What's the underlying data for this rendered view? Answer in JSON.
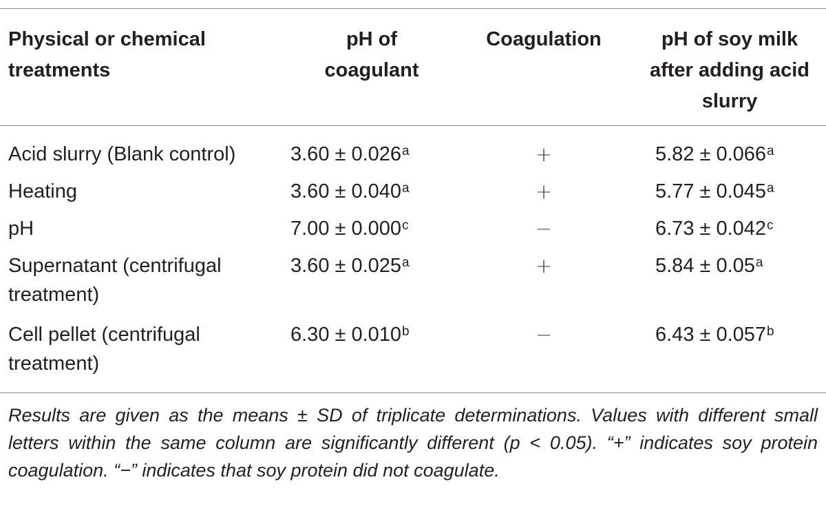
{
  "table": {
    "headers": {
      "treatment": "Physical or chemical treatments",
      "ph_coagulant": "pH of coagulant",
      "coagulation": "Coagulation",
      "ph_soy_milk": "pH of soy milk after adding acid slurry"
    },
    "rows": [
      {
        "treatment": "Acid slurry (Blank control)",
        "ph_coagulant": "3.60 ± 0.026",
        "ph_coagulant_letter": "a",
        "coagulation": "+",
        "ph_soy_milk": "5.82 ± 0.066",
        "ph_soy_milk_letter": "a"
      },
      {
        "treatment": "Heating",
        "ph_coagulant": "3.60 ± 0.040",
        "ph_coagulant_letter": "a",
        "coagulation": "+",
        "ph_soy_milk": "5.77 ± 0.045",
        "ph_soy_milk_letter": "a"
      },
      {
        "treatment": "pH",
        "ph_coagulant": "7.00 ± 0.000",
        "ph_coagulant_letter": "c",
        "coagulation": "−",
        "ph_soy_milk": "6.73 ± 0.042",
        "ph_soy_milk_letter": "c"
      },
      {
        "treatment": "Supernatant (centrifugal treatment)",
        "ph_coagulant": "3.60 ± 0.025",
        "ph_coagulant_letter": "a",
        "coagulation": "+",
        "ph_soy_milk": "5.84 ± 0.05",
        "ph_soy_milk_letter": "a"
      },
      {
        "treatment": "Cell pellet (centrifugal treatment)",
        "ph_coagulant": "6.30 ± 0.010",
        "ph_coagulant_letter": "b",
        "coagulation": "−",
        "ph_soy_milk": "6.43 ± 0.057",
        "ph_soy_milk_letter": "b"
      }
    ],
    "footnote": "Results are given as the means ± SD of triplicate determinations. Values with different small letters within the same column are significantly different (p < 0.05). “+” indicates soy protein coagulation. “−” indicates that soy protein did not coagulate."
  }
}
